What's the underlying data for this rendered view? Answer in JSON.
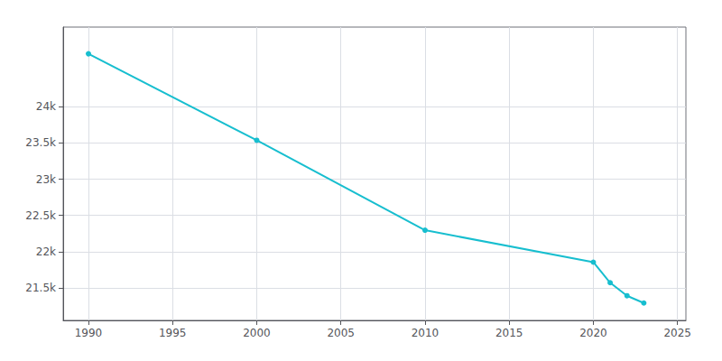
{
  "chart_data": {
    "type": "line",
    "x": [
      1990,
      2000,
      2010,
      2020,
      2021,
      2022,
      2023
    ],
    "values": [
      24731,
      23537,
      22295,
      21854,
      21570,
      21390,
      21290
    ],
    "color": "#17becf",
    "marker": "circle",
    "xlim": [
      1988.5,
      2025.5
    ],
    "xticks": [
      1990,
      1995,
      2000,
      2005,
      2010,
      2015,
      2020,
      2025
    ],
    "ylim": [
      21050,
      25100
    ],
    "yticks": [
      {
        "value": 21500,
        "label": "21.5k"
      },
      {
        "value": 22000,
        "label": "22k"
      },
      {
        "value": 22500,
        "label": "22.5k"
      },
      {
        "value": 23000,
        "label": "23k"
      },
      {
        "value": 23500,
        "label": "23.5k"
      },
      {
        "value": 24000,
        "label": "24k"
      }
    ],
    "grid": true
  }
}
